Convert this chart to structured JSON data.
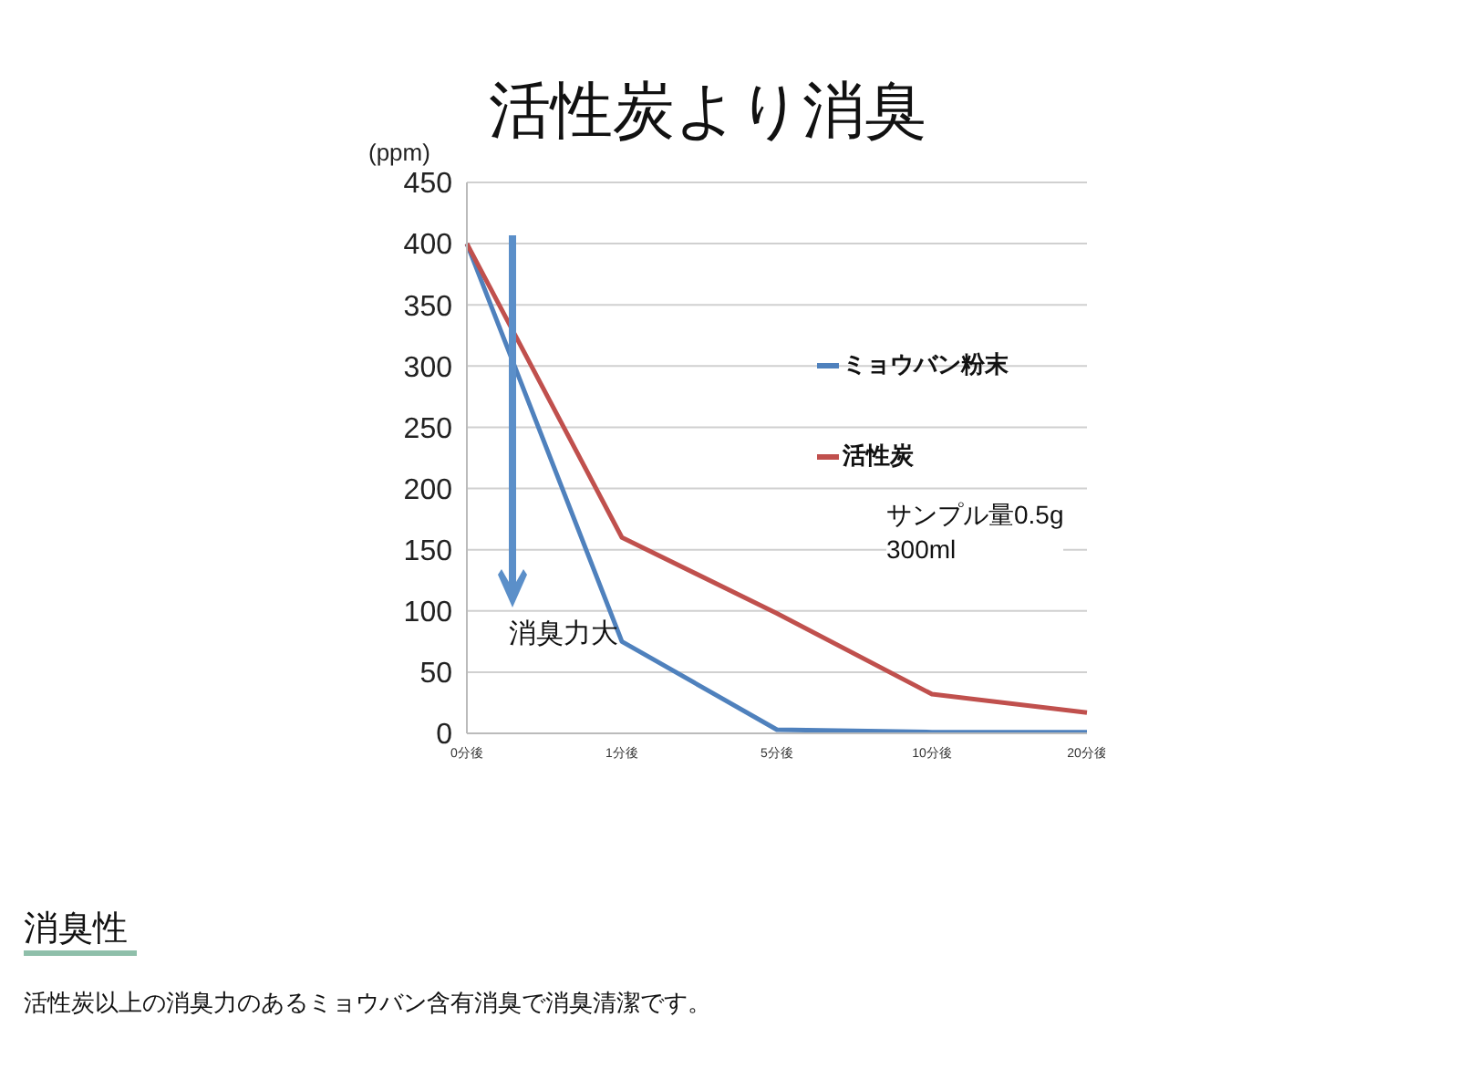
{
  "chart_data": {
    "type": "line",
    "title": "活性炭より消臭",
    "ylabel": "(ppm)",
    "categories": [
      "0分後",
      "1分後",
      "5分後",
      "10分後",
      "20分後"
    ],
    "series": [
      {
        "name": "ミョウバン粉末",
        "color": "#4f81bd",
        "values": [
          400,
          75,
          3,
          1,
          1
        ]
      },
      {
        "name": "活性炭",
        "color": "#c0504d",
        "values": [
          400,
          160,
          98,
          32,
          17
        ]
      }
    ],
    "ylim": [
      0,
      450
    ],
    "yticks": [
      0,
      50,
      100,
      150,
      200,
      250,
      300,
      350,
      400,
      450
    ],
    "grid": "y",
    "legend": "right",
    "marker": "none",
    "line_style": "solid",
    "annotations": [
      "消臭力大",
      "サンプル量0.5g",
      "300ml",
      "消臭性",
      "活性炭以上の消臭力のあるミョウバン含有消臭で消臭清潔です。"
    ]
  }
}
